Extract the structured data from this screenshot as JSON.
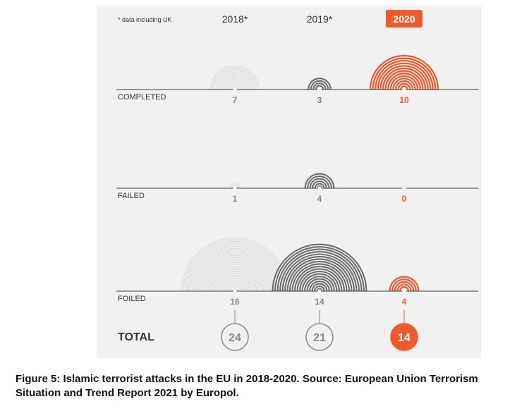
{
  "chart_data": {
    "type": "other",
    "note_text": "* data including UK",
    "columns": [
      "2018*",
      "2019*",
      "2020"
    ],
    "highlight_column": 2,
    "rows": [
      {
        "label": "COMPLETED",
        "values": [
          7,
          3,
          10
        ]
      },
      {
        "label": "FAILED",
        "values": [
          1,
          4,
          0
        ]
      },
      {
        "label": "FOILED",
        "values": [
          16,
          14,
          4
        ]
      }
    ],
    "total_label": "TOTAL",
    "totals": [
      24,
      21,
      14
    ]
  },
  "colors": {
    "panel": "#f1f1f1",
    "col_2018": "#dcdcdc",
    "col_2019": "#6f6f6f",
    "col_2020": "#f0592a",
    "value_grey": "#8a8a8a",
    "text_dark": "#333333"
  },
  "caption": "Figure 5: Islamic terrorist attacks in the EU in 2018-2020. Source: European Union Terrorism Situation and Trend Report 2021 by Europol."
}
